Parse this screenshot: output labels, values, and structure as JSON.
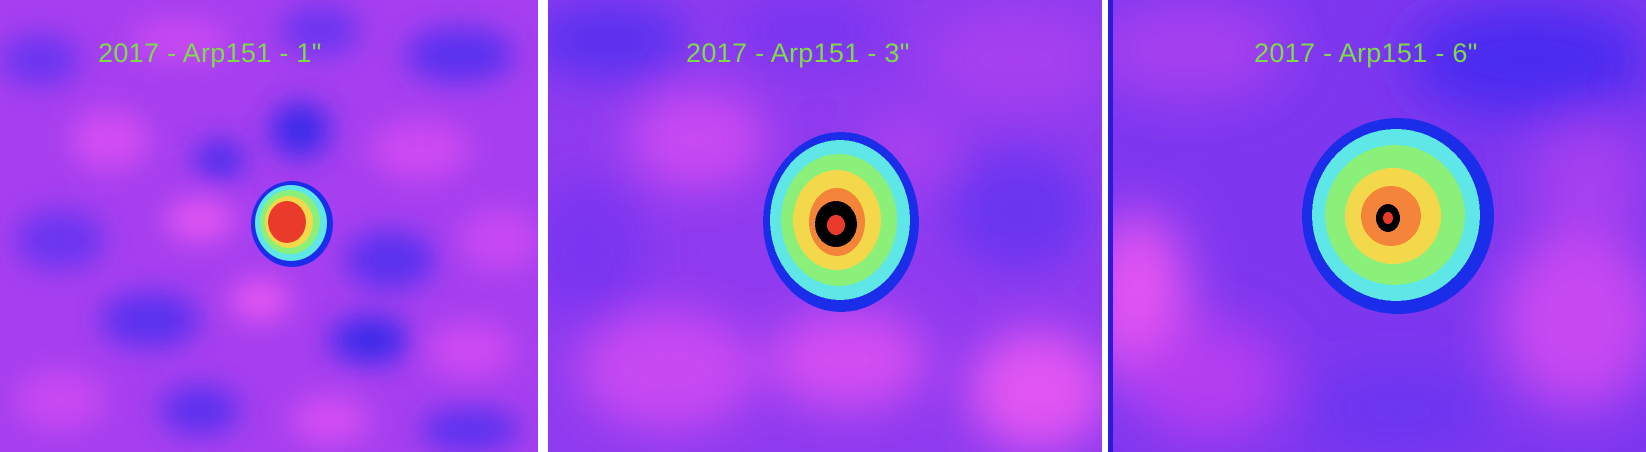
{
  "panels": [
    {
      "label": "2017 - Arp151 - 1\""
    },
    {
      "label": "2017 - Arp151 - 3\""
    },
    {
      "label": "2017 - Arp151 - 6\""
    }
  ],
  "colors": {
    "background_magenta": "#b43ef0",
    "background_blue": "#4a2bf0",
    "contour_blue": "#1b2de8",
    "contour_cyan": "#5fe6e6",
    "contour_green": "#8af07a",
    "contour_yellow": "#f2d84a",
    "contour_orange": "#f4843a",
    "contour_red": "#ea3a2c",
    "contour_black": "#000000",
    "label_green": "#7ddc49"
  }
}
